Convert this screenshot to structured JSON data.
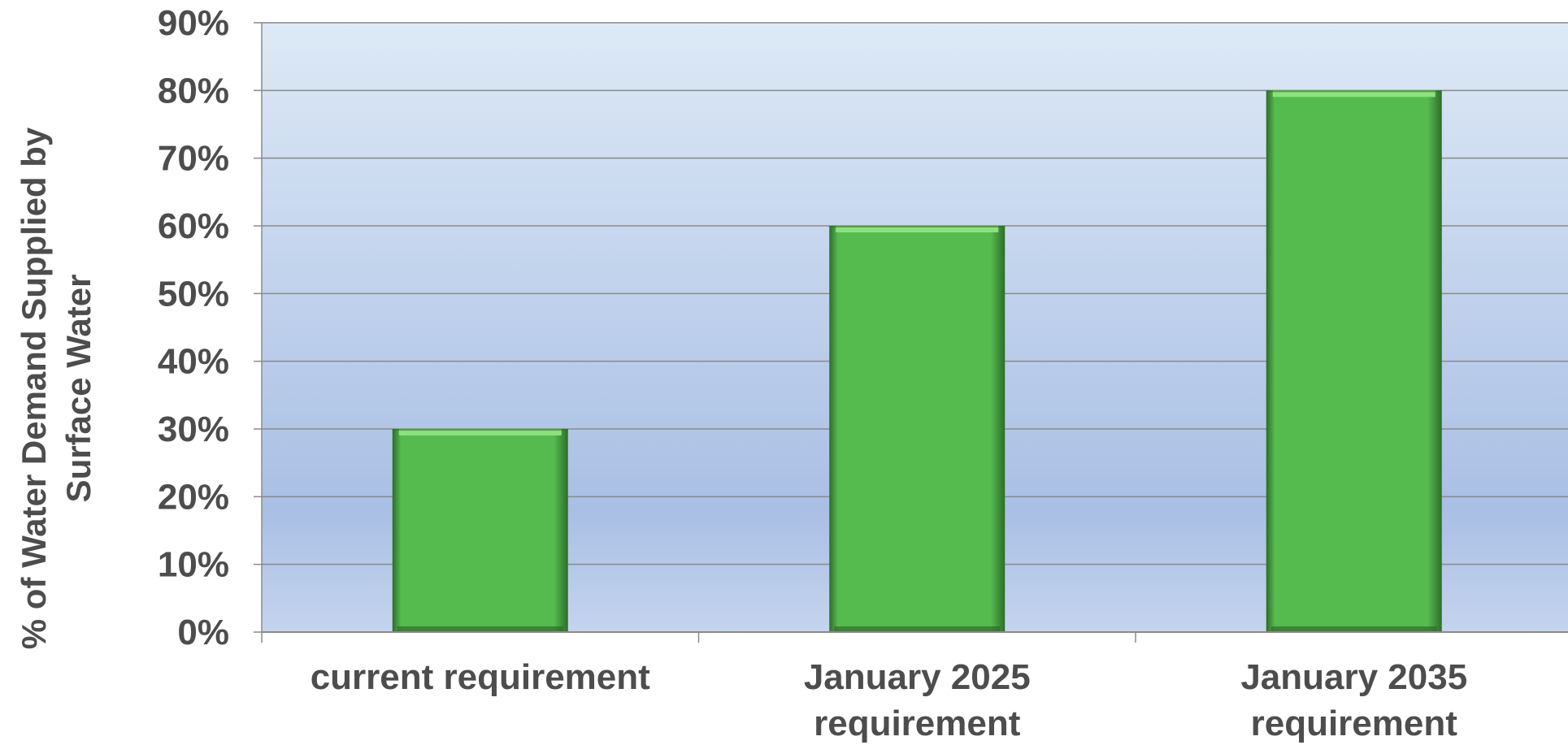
{
  "chart_data": {
    "type": "bar",
    "categories": [
      [
        "current requirement"
      ],
      [
        "January 2025",
        "requirement"
      ],
      [
        "January 2035",
        "requirement"
      ]
    ],
    "values": [
      30,
      60,
      80
    ],
    "ylabel": [
      "% of Water Demand Supplied by",
      "Surface Water"
    ],
    "ylim": [
      0,
      90
    ],
    "ytick_step": 10,
    "ytick_suffix": "%",
    "grid": true,
    "colors": {
      "bar": "#55bb4f",
      "bar_dark": "#2e6d2a",
      "bar_light": "#8ee07f",
      "grid": "#8a8a8a",
      "plot_bg_top": "#dde9f6",
      "plot_bg_mid": "#a9bfe4",
      "plot_bg_bottom": "#c4d4ee",
      "text": "#4d4d4d"
    }
  }
}
